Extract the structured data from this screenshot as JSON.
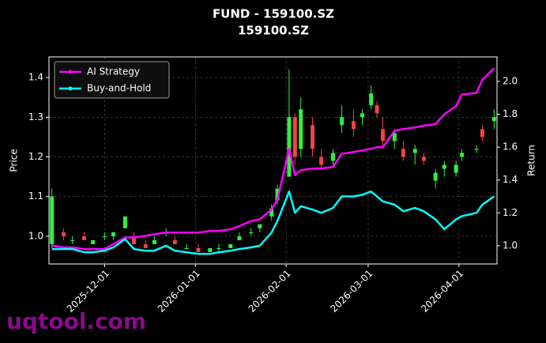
{
  "chart_data": {
    "type": "candlestick",
    "title": "FUND - 159100.SZ",
    "subtitle": "159100.SZ",
    "y_label": "Price",
    "y2_label": "Return",
    "watermark": "uqtool.com",
    "x": [
      "2025-11-13",
      "2025-11-17",
      "2025-11-20",
      "2025-11-24",
      "2025-11-27",
      "2025-12-01",
      "2025-12-04",
      "2025-12-08",
      "2025-12-11",
      "2025-12-15",
      "2025-12-18",
      "2025-12-22",
      "2025-12-25",
      "2025-12-29",
      "2026-01-02",
      "2026-01-06",
      "2026-01-09",
      "2026-01-13",
      "2026-01-16",
      "2026-01-20",
      "2026-01-23",
      "2026-01-27",
      "2026-01-29",
      "2026-02-02",
      "2026-02-04",
      "2026-02-06",
      "2026-02-10",
      "2026-02-13",
      "2026-02-17",
      "2026-02-20",
      "2026-02-24",
      "2026-02-27",
      "2026-03-02",
      "2026-03-04",
      "2026-03-06",
      "2026-03-10",
      "2026-03-13",
      "2026-03-17",
      "2026-03-20",
      "2026-03-24",
      "2026-03-27",
      "2026-03-31",
      "2026-04-02",
      "2026-04-07",
      "2026-04-09",
      "2026-04-13"
    ],
    "open": [
      0.98,
      1.01,
      0.99,
      1.0,
      0.98,
      1.0,
      1.0,
      1.02,
      1.0,
      0.98,
      0.98,
      1.01,
      0.99,
      0.97,
      0.97,
      0.96,
      0.97,
      0.97,
      0.99,
      1.01,
      1.02,
      1.05,
      1.09,
      1.15,
      1.3,
      1.22,
      1.28,
      1.2,
      1.19,
      1.28,
      1.29,
      1.3,
      1.33,
      1.33,
      1.27,
      1.24,
      1.22,
      1.21,
      1.2,
      1.14,
      1.17,
      1.16,
      1.2,
      1.22,
      1.27,
      1.29
    ],
    "high": [
      1.12,
      1.02,
      1.0,
      1.01,
      0.99,
      1.01,
      1.01,
      1.05,
      1.01,
      0.99,
      1.0,
      1.02,
      1.0,
      0.98,
      0.98,
      0.97,
      0.98,
      0.98,
      1.01,
      1.02,
      1.03,
      1.08,
      1.13,
      1.42,
      1.31,
      1.35,
      1.3,
      1.22,
      1.22,
      1.33,
      1.32,
      1.32,
      1.38,
      1.34,
      1.3,
      1.27,
      1.24,
      1.23,
      1.21,
      1.17,
      1.19,
      1.19,
      1.22,
      1.23,
      1.28,
      1.32
    ],
    "low": [
      0.97,
      0.99,
      0.98,
      0.99,
      0.98,
      0.99,
      0.99,
      1.02,
      0.98,
      0.97,
      0.98,
      1.0,
      0.98,
      0.97,
      0.96,
      0.96,
      0.96,
      0.97,
      0.99,
      1.0,
      1.01,
      1.04,
      1.08,
      1.15,
      1.18,
      1.2,
      1.2,
      1.17,
      1.18,
      1.26,
      1.25,
      1.28,
      1.32,
      1.3,
      1.22,
      1.22,
      1.19,
      1.18,
      1.18,
      1.12,
      1.15,
      1.15,
      1.19,
      1.21,
      1.24,
      1.27
    ],
    "close": [
      1.1,
      1.0,
      0.99,
      0.99,
      0.99,
      1.0,
      1.01,
      1.05,
      0.98,
      0.97,
      0.99,
      1.01,
      0.98,
      0.97,
      0.96,
      0.97,
      0.97,
      0.98,
      1.0,
      1.01,
      1.03,
      1.07,
      1.12,
      1.3,
      1.2,
      1.32,
      1.22,
      1.18,
      1.21,
      1.3,
      1.27,
      1.31,
      1.36,
      1.31,
      1.24,
      1.26,
      1.2,
      1.22,
      1.19,
      1.16,
      1.18,
      1.18,
      1.21,
      1.22,
      1.25,
      1.3
    ],
    "up_color": "#33ee44",
    "down_color": "#ee4444",
    "series": [
      {
        "name": "AI Strategy",
        "color": "#ff00ff",
        "axis": "y2",
        "values": [
          1.0,
          0.99,
          0.99,
          0.98,
          0.98,
          0.98,
          1.01,
          1.05,
          1.05,
          1.06,
          1.07,
          1.08,
          1.08,
          1.08,
          1.08,
          1.09,
          1.09,
          1.1,
          1.12,
          1.15,
          1.16,
          1.22,
          1.28,
          1.59,
          1.43,
          1.46,
          1.47,
          1.47,
          1.48,
          1.56,
          1.57,
          1.58,
          1.59,
          1.6,
          1.6,
          1.7,
          1.71,
          1.72,
          1.73,
          1.74,
          1.8,
          1.85,
          1.92,
          1.93,
          2.01,
          2.08
        ]
      },
      {
        "name": "Buy-and-Hold",
        "color": "#00ffff",
        "axis": "y2",
        "values": [
          0.98,
          0.98,
          0.98,
          0.96,
          0.96,
          0.97,
          0.99,
          1.04,
          0.98,
          0.97,
          0.97,
          1.0,
          0.97,
          0.96,
          0.95,
          0.95,
          0.96,
          0.97,
          0.98,
          0.99,
          1.0,
          1.08,
          1.15,
          1.33,
          1.2,
          1.24,
          1.22,
          1.2,
          1.23,
          1.3,
          1.3,
          1.31,
          1.33,
          1.3,
          1.27,
          1.25,
          1.21,
          1.23,
          1.21,
          1.16,
          1.1,
          1.16,
          1.18,
          1.2,
          1.25,
          1.3
        ]
      }
    ],
    "xlim": [
      "2025-11-12",
      "2026-04-14"
    ],
    "xticks": [
      "2025-12-01",
      "2026-01-01",
      "2026-02-01",
      "2026-03-01",
      "2026-04-01"
    ],
    "ylim": [
      0.93,
      1.452
    ],
    "yticks": [
      {
        "value": 1,
        "label": "1.0"
      },
      1.1,
      1.2,
      1.3,
      1.4
    ],
    "y2lim": [
      0.889,
      2.149
    ],
    "y2ticks": [
      {
        "value": 1,
        "label": "1.0"
      },
      1.2,
      1.4,
      1.6,
      1.8,
      {
        "value": 2,
        "label": "2.0"
      }
    ],
    "grid": true,
    "legend": "upper-left"
  }
}
